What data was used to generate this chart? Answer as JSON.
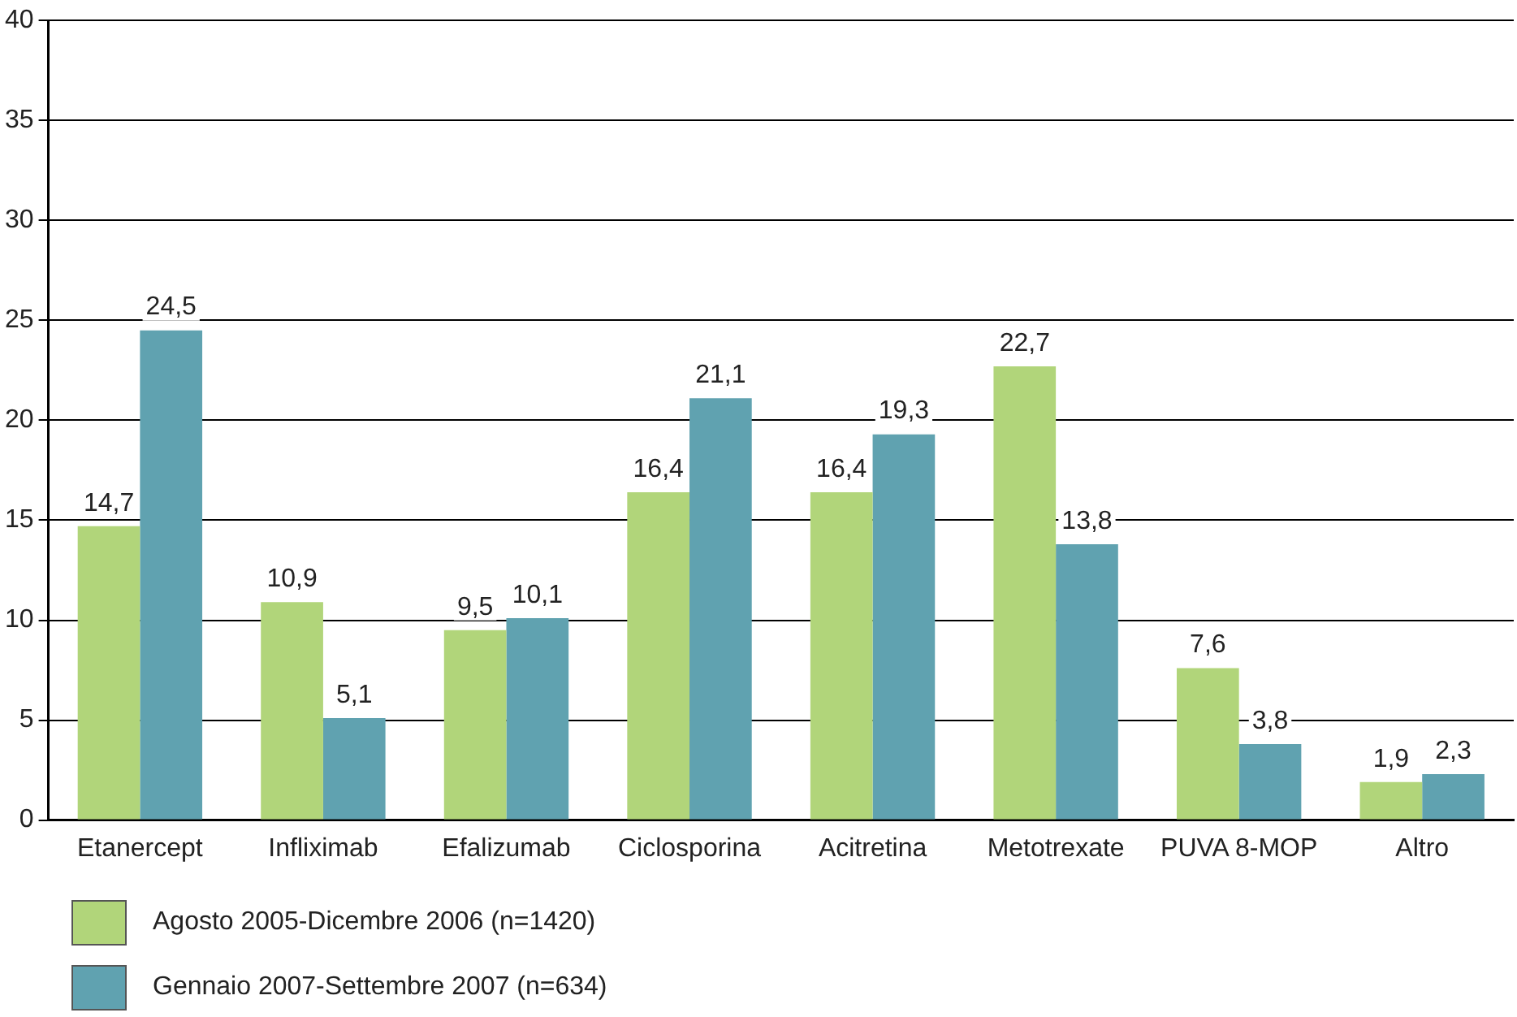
{
  "chart_data": {
    "type": "bar",
    "categories": [
      "Etanercept",
      "Infliximab",
      "Efalizumab",
      "Ciclosporina",
      "Acitretina",
      "Metotrexate",
      "PUVA 8-MOP",
      "Altro"
    ],
    "series": [
      {
        "name": "Agosto 2005-Dicembre 2006 (n=1420)",
        "color": "#b1d57a",
        "values": [
          14.7,
          10.9,
          9.5,
          16.4,
          16.4,
          22.7,
          7.6,
          1.9
        ],
        "value_labels": [
          "14,7",
          "10,9",
          "9,5",
          "16,4",
          "16,4",
          "22,7",
          "7,6",
          "1,9"
        ]
      },
      {
        "name": "Gennaio 2007-Settembre 2007 (n=634)",
        "color": "#60a2b0",
        "values": [
          24.5,
          5.1,
          10.1,
          21.1,
          19.3,
          13.8,
          3.8,
          2.3
        ],
        "value_labels": [
          "24,5",
          "5,1",
          "10,1",
          "21,1",
          "19,3",
          "13,8",
          "3,8",
          "2,3"
        ]
      }
    ],
    "ylim": [
      0,
      40
    ],
    "yticks": [
      0,
      5,
      10,
      15,
      20,
      25,
      30,
      35,
      40
    ],
    "grid": "y",
    "legend": "bottom left"
  }
}
